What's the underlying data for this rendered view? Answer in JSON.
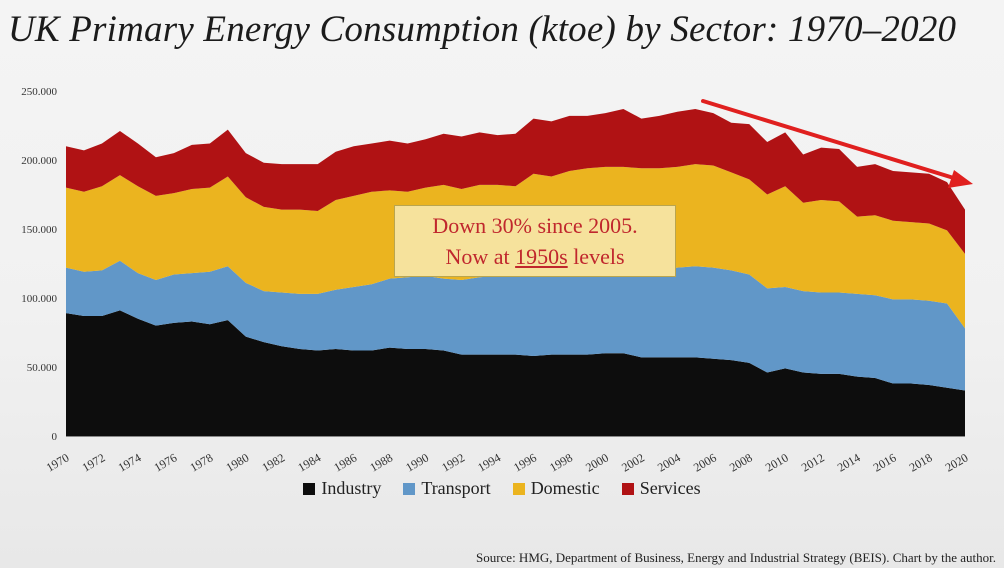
{
  "title": "UK Primary Energy Consumption (ktoe) by Sector: 1970–2020",
  "callout": {
    "line1": "Down 30% since 2005.",
    "line2_prefix": "Now at ",
    "line2_underlined": "1950s",
    "line2_suffix": " levels"
  },
  "source": "Source: HMG, Department of Business, Energy and Industrial Strategy (BEIS). Chart by the author.",
  "chart_data": {
    "type": "area",
    "stacked": true,
    "x": [
      1970,
      1971,
      1972,
      1973,
      1974,
      1975,
      1976,
      1977,
      1978,
      1979,
      1980,
      1981,
      1982,
      1983,
      1984,
      1985,
      1986,
      1987,
      1988,
      1989,
      1990,
      1991,
      1992,
      1993,
      1994,
      1995,
      1996,
      1997,
      1998,
      1999,
      2000,
      2001,
      2002,
      2003,
      2004,
      2005,
      2006,
      2007,
      2008,
      2009,
      2010,
      2011,
      2012,
      2013,
      2014,
      2015,
      2016,
      2017,
      2018,
      2019,
      2020
    ],
    "x_tick_labels": [
      "1970",
      "1972",
      "1974",
      "1976",
      "1978",
      "1980",
      "1982",
      "1984",
      "1986",
      "1988",
      "1990",
      "1992",
      "1994",
      "1996",
      "1998",
      "2000",
      "2002",
      "2004",
      "2006",
      "2008",
      "2010",
      "2012",
      "2014",
      "2016",
      "2018",
      "2020"
    ],
    "y_tick_labels": [
      "0",
      "50.000",
      "100.000",
      "150.000",
      "200.000",
      "250.000"
    ],
    "ylim": [
      0,
      250000
    ],
    "grid": false,
    "legend_position": "bottom",
    "series": [
      {
        "name": "Industry",
        "color": "#0d0d0d",
        "values": [
          89000,
          87000,
          87000,
          91000,
          85000,
          80000,
          82000,
          83000,
          81000,
          84000,
          72000,
          68000,
          65000,
          63000,
          62000,
          63000,
          62000,
          62000,
          64000,
          63000,
          63000,
          62000,
          59000,
          59000,
          59000,
          59000,
          58000,
          59000,
          59000,
          59000,
          60000,
          60000,
          57000,
          57000,
          57000,
          57000,
          56000,
          55000,
          53000,
          46000,
          49000,
          46000,
          45000,
          45000,
          43000,
          42000,
          38000,
          38000,
          37000,
          35000,
          33000
        ]
      },
      {
        "name": "Transport",
        "color": "#6197c8",
        "values": [
          33000,
          32000,
          33000,
          36000,
          33000,
          33000,
          35000,
          35000,
          38000,
          39000,
          39000,
          37000,
          39000,
          40000,
          41000,
          43000,
          46000,
          48000,
          50000,
          52000,
          53000,
          52000,
          54000,
          56000,
          57000,
          58000,
          60000,
          61000,
          61000,
          62000,
          62000,
          63000,
          64000,
          64000,
          65000,
          66000,
          66000,
          65000,
          64000,
          61000,
          59000,
          59000,
          59000,
          59000,
          60000,
          60000,
          61000,
          61000,
          61000,
          61000,
          45000
        ]
      },
      {
        "name": "Domestic",
        "color": "#ebb41f",
        "values": [
          58000,
          58000,
          61000,
          62000,
          63000,
          61000,
          59000,
          61000,
          61000,
          65000,
          62000,
          61000,
          60000,
          61000,
          60000,
          65000,
          66000,
          67000,
          64000,
          62000,
          64000,
          68000,
          66000,
          67000,
          66000,
          64000,
          72000,
          68000,
          72000,
          73000,
          73000,
          72000,
          73000,
          73000,
          73000,
          74000,
          74000,
          71000,
          69000,
          68000,
          73000,
          64000,
          67000,
          66000,
          56000,
          58000,
          57000,
          56000,
          56000,
          53000,
          54000
        ]
      },
      {
        "name": "Services",
        "color": "#b01214",
        "values": [
          30000,
          30000,
          31000,
          32000,
          31000,
          28000,
          29000,
          32000,
          32000,
          34000,
          32000,
          32000,
          33000,
          33000,
          34000,
          35000,
          36000,
          35000,
          36000,
          35000,
          35000,
          37000,
          38000,
          38000,
          36000,
          38000,
          40000,
          40000,
          40000,
          38000,
          39000,
          42000,
          36000,
          38000,
          40000,
          40000,
          38000,
          36000,
          40000,
          38000,
          39000,
          35000,
          38000,
          38000,
          36000,
          37000,
          36000,
          36000,
          36000,
          35000,
          32000
        ]
      }
    ]
  }
}
